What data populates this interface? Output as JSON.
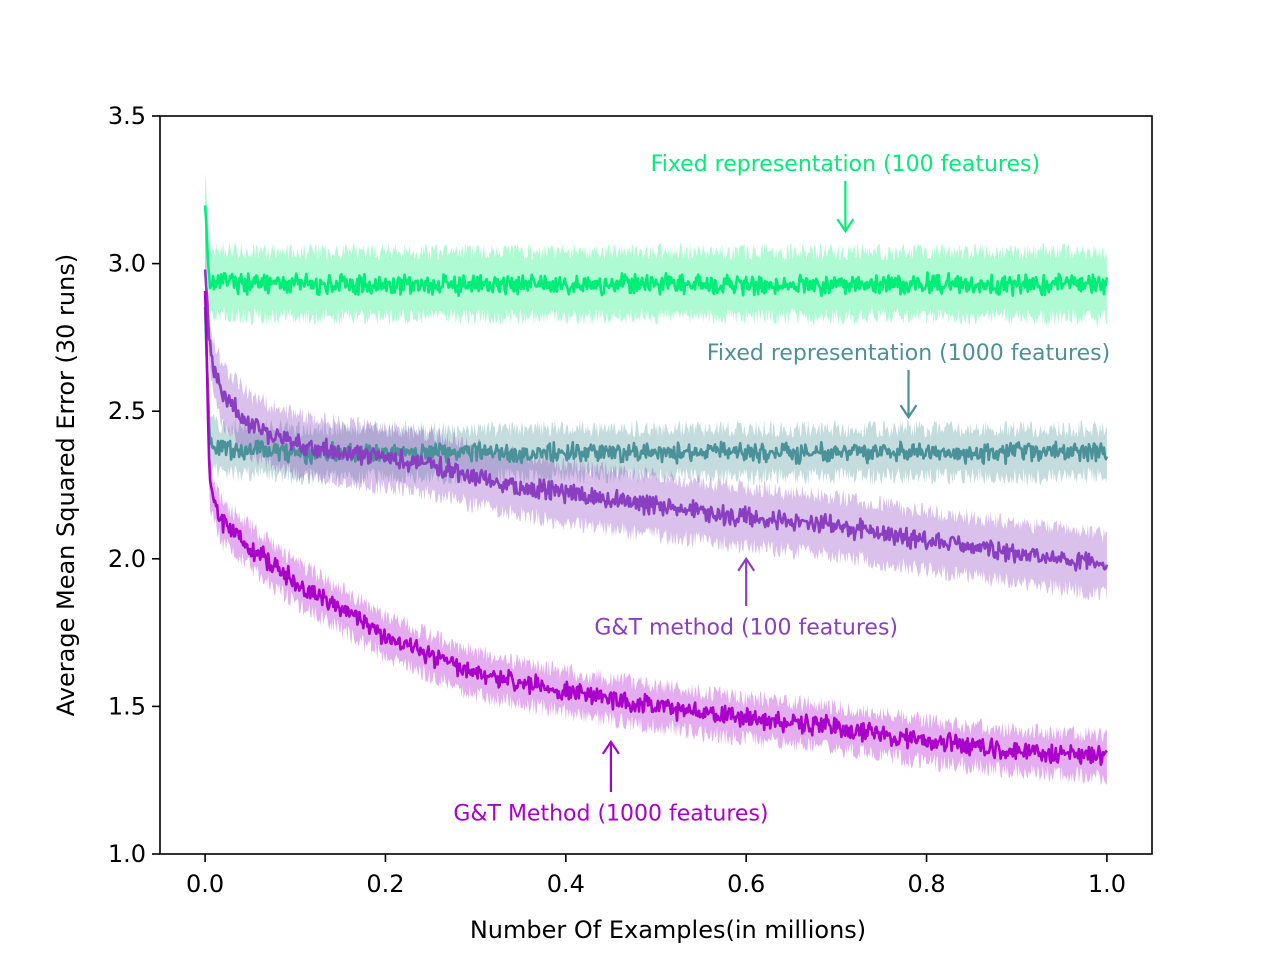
{
  "chart_data": {
    "type": "line",
    "title": "",
    "xlabel": "Number Of Examples(in millions)",
    "ylabel": "Average Mean Squared Error (30 runs)",
    "xlim": [
      -0.05,
      1.05
    ],
    "ylim": [
      1.0,
      3.5
    ],
    "xticks": [
      0.0,
      0.2,
      0.4,
      0.6,
      0.8,
      1.0
    ],
    "xtick_labels": [
      "0.0",
      "0.2",
      "0.4",
      "0.6",
      "0.8",
      "1.0"
    ],
    "yticks": [
      1.0,
      1.5,
      2.0,
      2.5,
      3.0,
      3.5
    ],
    "ytick_labels": [
      "1.0",
      "1.5",
      "2.0",
      "2.5",
      "3.0",
      "3.5"
    ],
    "grid": false,
    "legend": "none",
    "x": [
      0.0,
      0.005,
      0.01,
      0.02,
      0.05,
      0.1,
      0.15,
      0.2,
      0.25,
      0.3,
      0.4,
      0.5,
      0.6,
      0.7,
      0.8,
      0.9,
      1.0
    ],
    "series": [
      {
        "color": "#00ee77",
        "values": [
          3.2,
          2.94,
          2.94,
          2.94,
          2.93,
          2.93,
          2.93,
          2.93,
          2.93,
          2.93,
          2.93,
          2.93,
          2.93,
          2.93,
          2.93,
          2.93,
          2.93
        ],
        "band": 0.11
      },
      {
        "color": "#4a9199",
        "values": [
          2.85,
          2.4,
          2.38,
          2.37,
          2.37,
          2.36,
          2.36,
          2.36,
          2.36,
          2.36,
          2.36,
          2.36,
          2.36,
          2.36,
          2.36,
          2.36,
          2.36
        ],
        "band": 0.08
      },
      {
        "color": "#8a3ec2",
        "values": [
          3.0,
          2.72,
          2.64,
          2.55,
          2.45,
          2.39,
          2.36,
          2.34,
          2.32,
          2.28,
          2.22,
          2.18,
          2.14,
          2.11,
          2.06,
          2.02,
          1.98
        ],
        "band": 0.1
      },
      {
        "color": "#aa00cc",
        "values": [
          2.92,
          2.26,
          2.19,
          2.12,
          2.04,
          1.92,
          1.83,
          1.74,
          1.67,
          1.61,
          1.55,
          1.5,
          1.46,
          1.43,
          1.38,
          1.35,
          1.33
        ],
        "band": 0.07
      }
    ],
    "annotations": [
      {
        "text": "Fixed representation (100 features)",
        "color": "#00ee77",
        "x": 0.71,
        "y": 3.34,
        "arrow_from": [
          0.71,
          3.28
        ],
        "arrow_to": [
          0.71,
          3.11
        ]
      },
      {
        "text": "Fixed representation (1000 features)",
        "color": "#4a9199",
        "x": 0.78,
        "y": 2.7,
        "arrow_from": [
          0.78,
          2.64
        ],
        "arrow_to": [
          0.78,
          2.48
        ]
      },
      {
        "text": "G&T method (100 features)",
        "color": "#8a3ec2",
        "x": 0.6,
        "y": 1.77,
        "arrow_from": [
          0.6,
          1.84
        ],
        "arrow_to": [
          0.6,
          2.0
        ]
      },
      {
        "text": "G&T Method (1000 features)",
        "color": "#aa00cc",
        "x": 0.45,
        "y": 1.14,
        "arrow_from": [
          0.45,
          1.21
        ],
        "arrow_to": [
          0.45,
          1.38
        ]
      }
    ]
  }
}
